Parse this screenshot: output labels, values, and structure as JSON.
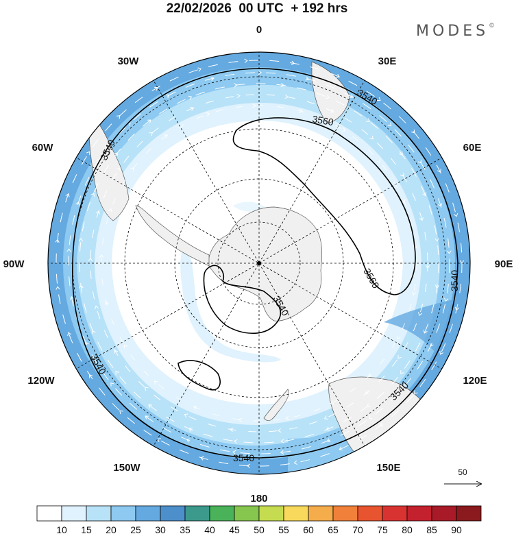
{
  "header": {
    "title": "22/02/2026  00 UTC  + 192 hrs",
    "brand": "MODES",
    "brand_mark": "©"
  },
  "map": {
    "projection": "south-polar-stereographic",
    "longitude_labels": {
      "top": "0",
      "top_right": "30E",
      "right_upper": "60E",
      "right": "90E",
      "right_lower": "120E",
      "bottom_right": "150E",
      "bottom": "180",
      "bottom_left": "150W",
      "left_lower": "120W",
      "left": "90W",
      "left_upper": "60W",
      "top_left": "30W"
    },
    "contour_labels": {
      "c1": "3540",
      "c2": "3560",
      "c3": "3560",
      "c4": "3540",
      "c5": "3540",
      "c6": "3540",
      "c7": "3540",
      "c8": "3540",
      "c9": "3540"
    },
    "vector_reference": {
      "label": "50"
    }
  },
  "colorbar": {
    "colors": [
      "#ffffff",
      "#dff2fd",
      "#b8e2f8",
      "#8dc9f0",
      "#64a9e0",
      "#4d8fca",
      "#3c9a8c",
      "#4ab35a",
      "#86c54e",
      "#c6dc50",
      "#f8d95b",
      "#f5ac4b",
      "#f1803a",
      "#e8542f",
      "#d93331",
      "#c4212e",
      "#a81a27",
      "#8a1a1d"
    ],
    "ticks": [
      "10",
      "15",
      "20",
      "25",
      "30",
      "35",
      "40",
      "45",
      "50",
      "55",
      "60",
      "65",
      "70",
      "75",
      "80",
      "85",
      "90"
    ]
  },
  "style": {
    "land_color": "#f0f0f0",
    "coast_color": "#555555",
    "contour_color": "#000000",
    "grid_color": "#000000"
  }
}
